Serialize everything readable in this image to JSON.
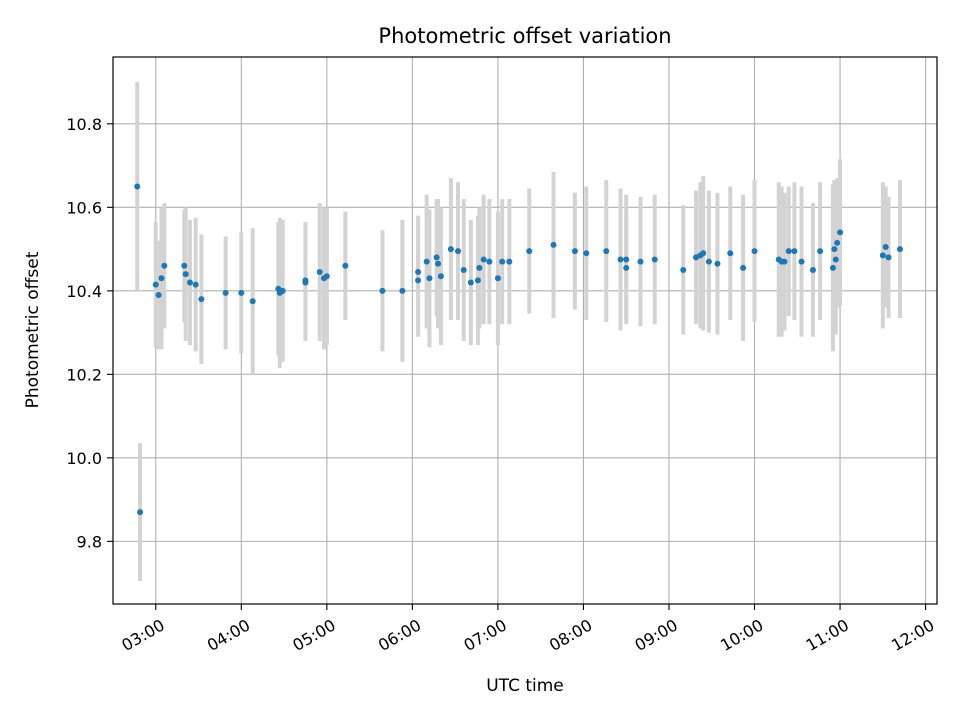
{
  "chart_data": {
    "type": "scatter",
    "title": "Photometric offset variation",
    "xlabel": "UTC time",
    "ylabel": "Photometric offset",
    "xlim": [
      "02:30",
      "12:08"
    ],
    "ylim": [
      9.65,
      10.96
    ],
    "x_ticks": [
      "03:00",
      "04:00",
      "05:00",
      "06:00",
      "07:00",
      "08:00",
      "09:00",
      "10:00",
      "11:00",
      "12:00"
    ],
    "y_ticks": [
      "9.8",
      "10.0",
      "10.2",
      "10.4",
      "10.6",
      "10.8"
    ],
    "grid": true,
    "colors": {
      "points": "#1f77b4",
      "error_bars": "#d3d3d3",
      "grid": "#b0b0b0"
    },
    "series": [
      {
        "x": [
          "02:47",
          "02:49",
          "03:00",
          "03:02",
          "03:04",
          "03:06",
          "03:20",
          "03:21",
          "03:24",
          "03:28",
          "03:32",
          "03:49",
          "04:00",
          "04:08",
          "04:26",
          "04:27",
          "04:29",
          "04:45",
          "04:45",
          "04:55",
          "04:58",
          "05:00",
          "05:13",
          "05:39",
          "05:53",
          "06:04",
          "06:04",
          "06:10",
          "06:12",
          "06:17",
          "06:18",
          "06:20",
          "06:27",
          "06:32",
          "06:36",
          "06:41",
          "06:46",
          "06:47",
          "06:50",
          "06:54",
          "07:00",
          "07:03",
          "07:08",
          "07:22",
          "07:39",
          "07:54",
          "08:02",
          "08:16",
          "08:26",
          "08:30",
          "08:30",
          "08:40",
          "08:50",
          "09:10",
          "09:19",
          "09:22",
          "09:24",
          "09:28",
          "09:34",
          "09:43",
          "09:52",
          "10:00",
          "10:17",
          "10:19",
          "10:21",
          "10:24",
          "10:28",
          "10:33",
          "10:41",
          "10:46",
          "10:55",
          "10:56",
          "10:57",
          "10:58",
          "11:00",
          "11:30",
          "11:32",
          "11:34",
          "11:42"
        ],
        "y": [
          10.65,
          9.87,
          10.415,
          10.39,
          10.43,
          10.46,
          10.46,
          10.44,
          10.42,
          10.415,
          10.38,
          10.395,
          10.395,
          10.375,
          10.405,
          10.395,
          10.4,
          10.425,
          10.42,
          10.445,
          10.43,
          10.435,
          10.46,
          10.4,
          10.4,
          10.445,
          10.425,
          10.47,
          10.43,
          10.48,
          10.465,
          10.435,
          10.5,
          10.495,
          10.45,
          10.42,
          10.425,
          10.455,
          10.475,
          10.47,
          10.43,
          10.47,
          10.47,
          10.495,
          10.51,
          10.495,
          10.49,
          10.495,
          10.475,
          10.455,
          10.475,
          10.47,
          10.475,
          10.45,
          10.48,
          10.485,
          10.49,
          10.47,
          10.465,
          10.49,
          10.455,
          10.495,
          10.475,
          10.47,
          10.47,
          10.495,
          10.495,
          10.47,
          10.45,
          10.495,
          10.455,
          10.5,
          10.475,
          10.515,
          10.54,
          10.485,
          10.505,
          10.48,
          10.5
        ],
        "yerr": [
          0.25,
          0.165,
          0.15,
          0.13,
          0.17,
          0.15,
          0.135,
          0.16,
          0.15,
          0.16,
          0.155,
          0.135,
          0.145,
          0.175,
          0.16,
          0.18,
          0.17,
          0.14,
          0.14,
          0.165,
          0.17,
          0.165,
          0.13,
          0.145,
          0.17,
          0.135,
          0.135,
          0.16,
          0.165,
          0.14,
          0.155,
          0.165,
          0.17,
          0.165,
          0.17,
          0.15,
          0.155,
          0.145,
          0.155,
          0.15,
          0.16,
          0.15,
          0.15,
          0.15,
          0.175,
          0.14,
          0.16,
          0.17,
          0.17,
          0.13,
          0.155,
          0.155,
          0.155,
          0.155,
          0.16,
          0.175,
          0.185,
          0.17,
          0.17,
          0.16,
          0.175,
          0.17,
          0.185,
          0.18,
          0.165,
          0.155,
          0.165,
          0.18,
          0.16,
          0.165,
          0.2,
          0.165,
          0.18,
          0.155,
          0.175,
          0.175,
          0.145,
          0.145,
          0.165
        ]
      }
    ]
  }
}
